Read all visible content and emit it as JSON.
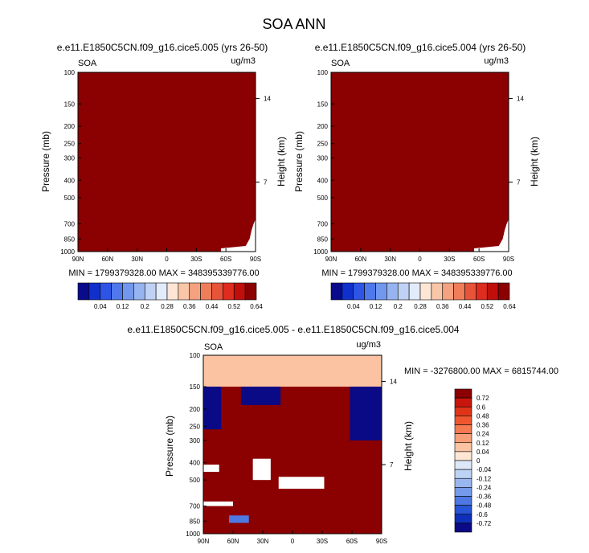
{
  "title": "SOA ANN",
  "panels": [
    {
      "subtitle": "e.e11.E1850C5CN.f09_g16.cice5.005 (yrs 26-50)",
      "left_label": "SOA",
      "right_label": "ug/m3",
      "ylabel": "Pressure (mb)",
      "ylabel_right": "Height (km)",
      "stats": "MIN = 1799379328.00  MAX = 348395339776.00"
    },
    {
      "subtitle": "e.e11.E1850C5CN.f09_g16.cice5.004 (yrs 26-50)",
      "left_label": "SOA",
      "right_label": "ug/m3",
      "ylabel": "Pressure (mb)",
      "ylabel_right": "Height (km)",
      "stats": "MIN = 1799379328.00  MAX = 348395339776.00"
    },
    {
      "subtitle": "e.e11.E1850C5CN.f09_g16.cice5.005 - e.e11.E1850C5CN.f09_g16.cice5.004",
      "left_label": "SOA",
      "right_label": "ug/m3",
      "ylabel": "Pressure (mb)",
      "ylabel_right": "Height (km)",
      "stats": "MIN = -3276800.00  MAX = 6815744.00"
    }
  ],
  "chart_data": [
    {
      "type": "heatmap",
      "title": "e.e11.E1850C5CN.f09_g16.cice5.005 (yrs 26-50)",
      "xlabel": "",
      "ylabel": "Pressure (mb)",
      "xticks": [
        "90N",
        "60N",
        "30N",
        "0",
        "30S",
        "60S",
        "90S"
      ],
      "xlim": [
        90,
        -90
      ],
      "yticks": [
        100,
        150,
        200,
        250,
        300,
        400,
        500,
        700,
        850,
        1000
      ],
      "ylim": [
        100,
        1000
      ],
      "yscale": "log",
      "right_axis": {
        "label": "Height (km)",
        "ticks": [
          14,
          7
        ]
      },
      "fill_level": 0.64,
      "colorbar_levels": [
        0.04,
        0.12,
        0.2,
        0.28,
        0.36,
        0.44,
        0.52,
        0.64
      ],
      "colorbar_colors": [
        "#0a0a8c",
        "#1030cc",
        "#2e54e6",
        "#4f78ec",
        "#7298ee",
        "#97b4f0",
        "#bfd1f4",
        "#e2ebfa",
        "#fde6d6",
        "#f9c6a8",
        "#f4a27f",
        "#ef7d5a",
        "#e8543a",
        "#de2c1e",
        "#c00f0b",
        "#8b0000"
      ],
      "stats": {
        "min": 1799379328.0,
        "max": 348395339776.0
      }
    },
    {
      "type": "heatmap",
      "title": "e.e11.E1850C5CN.f09_g16.cice5.004 (yrs 26-50)",
      "xlabel": "",
      "ylabel": "Pressure (mb)",
      "xticks": [
        "90N",
        "60N",
        "30N",
        "0",
        "30S",
        "60S",
        "90S"
      ],
      "xlim": [
        90,
        -90
      ],
      "yticks": [
        100,
        150,
        200,
        250,
        300,
        400,
        500,
        700,
        850,
        1000
      ],
      "ylim": [
        100,
        1000
      ],
      "yscale": "log",
      "right_axis": {
        "label": "Height (km)",
        "ticks": [
          14,
          7
        ]
      },
      "fill_level": 0.64,
      "colorbar_levels": [
        0.04,
        0.12,
        0.2,
        0.28,
        0.36,
        0.44,
        0.52,
        0.64
      ],
      "colorbar_colors": [
        "#0a0a8c",
        "#1030cc",
        "#2e54e6",
        "#4f78ec",
        "#7298ee",
        "#97b4f0",
        "#bfd1f4",
        "#e2ebfa",
        "#fde6d6",
        "#f9c6a8",
        "#f4a27f",
        "#ef7d5a",
        "#e8543a",
        "#de2c1e",
        "#c00f0b",
        "#8b0000"
      ],
      "stats": {
        "min": 1799379328.0,
        "max": 348395339776.0
      }
    },
    {
      "type": "heatmap",
      "title": "e.e11.E1850C5CN.f09_g16.cice5.005 - e.e11.E1850C5CN.f09_g16.cice5.004",
      "xlabel": "",
      "ylabel": "Pressure (mb)",
      "xticks": [
        "90N",
        "60N",
        "30N",
        "0",
        "30S",
        "60S",
        "90S"
      ],
      "xlim": [
        90,
        -90
      ],
      "yticks": [
        100,
        150,
        200,
        250,
        300,
        400,
        500,
        700,
        850,
        1000
      ],
      "ylim": [
        100,
        1000
      ],
      "yscale": "log",
      "right_axis": {
        "label": "Height (km)",
        "ticks": [
          14,
          7
        ]
      },
      "colorbar_levels": [
        0.72,
        0.6,
        0.48,
        0.36,
        0.24,
        0.12,
        0.04,
        0,
        -0.04,
        -0.12,
        -0.24,
        -0.36,
        -0.48,
        -0.6,
        -0.72
      ],
      "colorbar_colors": [
        "#8b0000",
        "#c8160c",
        "#e03418",
        "#ef5630",
        "#f57a52",
        "#f89e78",
        "#fbc3a2",
        "#fde6d4",
        "#dde9f8",
        "#bdd2f4",
        "#9ab6ef",
        "#759aea",
        "#4e78e2",
        "#2854d6",
        "#0e2fb8",
        "#0a0a86"
      ],
      "upper_fill_level": 0.04,
      "regions": [
        {
          "level": 0.72,
          "lat": [
            90,
            -90
          ],
          "p": [
            150,
            1000
          ]
        },
        {
          "level": -0.72,
          "lat": [
            90,
            72
          ],
          "p": [
            150,
            260
          ]
        },
        {
          "level": -0.72,
          "lat": [
            52,
            12
          ],
          "p": [
            150,
            190
          ]
        },
        {
          "level": -0.72,
          "lat": [
            -58,
            -90
          ],
          "p": [
            150,
            300
          ]
        },
        {
          "level": -0.36,
          "lat": [
            64,
            44
          ],
          "p": [
            790,
            870
          ]
        },
        {
          "level": 0,
          "lat": [
            90,
            74
          ],
          "p": [
            410,
            450
          ]
        },
        {
          "level": 0,
          "lat": [
            40,
            22
          ],
          "p": [
            380,
            500
          ]
        },
        {
          "level": 0,
          "lat": [
            14,
            -32
          ],
          "p": [
            480,
            560
          ]
        },
        {
          "level": 0,
          "lat": [
            90,
            60
          ],
          "p": [
            660,
            700
          ]
        }
      ],
      "stats": {
        "min": -3276800.0,
        "max": 6815744.0
      }
    }
  ]
}
